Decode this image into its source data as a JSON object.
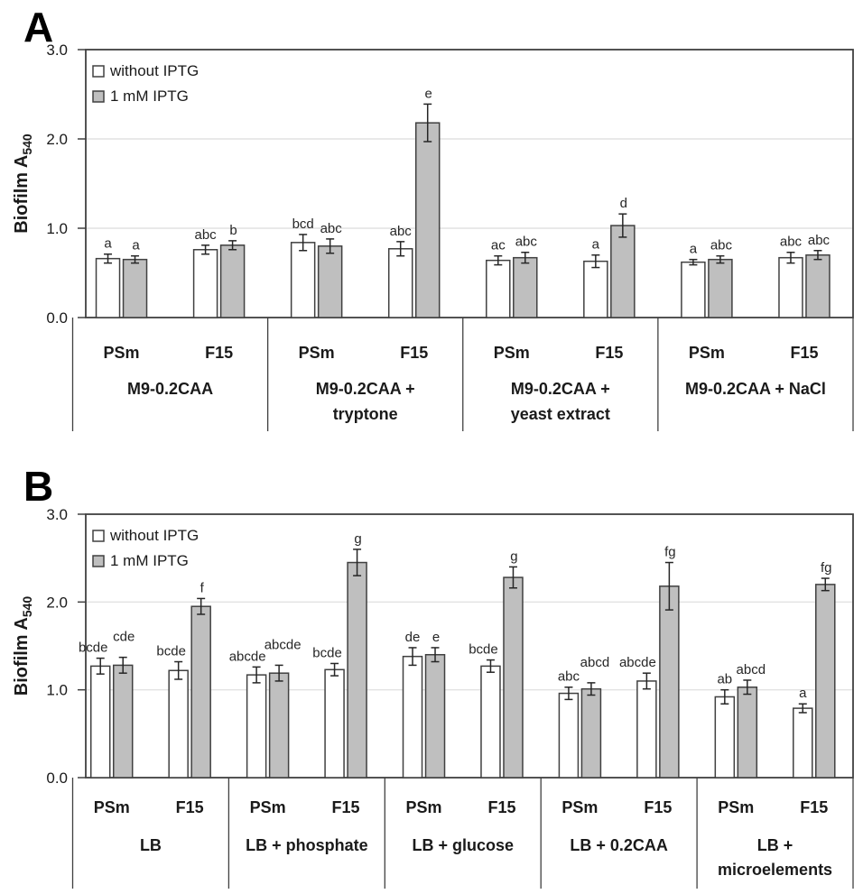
{
  "figure": {
    "background": "#FFFFFF",
    "panel_labels": [
      "A",
      "B"
    ]
  },
  "styles": {
    "frame_color": "#404040",
    "grid_color": "#E2E2E2",
    "text_color": "#1A1A1A",
    "error_bar_color": "#262626",
    "bar_stroke_color": "#404040"
  },
  "chart_data": [
    {
      "type": "bar",
      "panel_label": "A",
      "ylabel": "Biofilm A",
      "ylabel_subscript": "540",
      "ylim": [
        0.0,
        3.0
      ],
      "yticks": [
        0.0,
        1.0,
        2.0,
        3.0
      ],
      "gridlines_at": [
        1.0,
        2.0
      ],
      "legend": {
        "position": "top-left-inside",
        "items": [
          {
            "label": "without IPTG",
            "fill": "#FFFFFF"
          },
          {
            "label": "1 mM IPTG",
            "fill": "#BFBFBF"
          }
        ]
      },
      "strains": [
        "PSm",
        "F15"
      ],
      "groups": [
        {
          "label_lines": [
            "M9-0.2CAA"
          ],
          "subgroups": [
            {
              "label": "PSm",
              "bars": [
                {
                  "value": 0.66,
                  "error": 0.05,
                  "letter": "a"
                },
                {
                  "value": 0.65,
                  "error": 0.04,
                  "letter": "a"
                }
              ]
            },
            {
              "label": "F15",
              "bars": [
                {
                  "value": 0.76,
                  "error": 0.05,
                  "letter": "abc"
                },
                {
                  "value": 0.81,
                  "error": 0.05,
                  "letter": "b"
                }
              ]
            }
          ]
        },
        {
          "label_lines": [
            "M9-0.2CAA +",
            "tryptone"
          ],
          "subgroups": [
            {
              "label": "PSm",
              "bars": [
                {
                  "value": 0.84,
                  "error": 0.09,
                  "letter": "bcd"
                },
                {
                  "value": 0.8,
                  "error": 0.08,
                  "letter": "abc"
                }
              ]
            },
            {
              "label": "F15",
              "bars": [
                {
                  "value": 0.77,
                  "error": 0.08,
                  "letter": "abc"
                },
                {
                  "value": 2.18,
                  "error": 0.21,
                  "letter": "e"
                }
              ]
            }
          ]
        },
        {
          "label_lines": [
            "M9-0.2CAA +",
            "yeast extract"
          ],
          "subgroups": [
            {
              "label": "PSm",
              "bars": [
                {
                  "value": 0.64,
                  "error": 0.05,
                  "letter": "ac"
                },
                {
                  "value": 0.67,
                  "error": 0.06,
                  "letter": "abc"
                }
              ]
            },
            {
              "label": "F15",
              "bars": [
                {
                  "value": 0.63,
                  "error": 0.07,
                  "letter": "a"
                },
                {
                  "value": 1.03,
                  "error": 0.13,
                  "letter": "d"
                }
              ]
            }
          ]
        },
        {
          "label_lines": [
            "M9-0.2CAA + NaCl"
          ],
          "subgroups": [
            {
              "label": "PSm",
              "bars": [
                {
                  "value": 0.62,
                  "error": 0.03,
                  "letter": "a"
                },
                {
                  "value": 0.65,
                  "error": 0.04,
                  "letter": "abc"
                }
              ]
            },
            {
              "label": "F15",
              "bars": [
                {
                  "value": 0.67,
                  "error": 0.06,
                  "letter": "abc"
                },
                {
                  "value": 0.7,
                  "error": 0.05,
                  "letter": "abc"
                }
              ]
            }
          ]
        }
      ]
    },
    {
      "type": "bar",
      "panel_label": "B",
      "ylabel": "Biofilm A",
      "ylabel_subscript": "540",
      "ylim": [
        0.0,
        3.0
      ],
      "yticks": [
        0.0,
        1.0,
        2.0,
        3.0
      ],
      "gridlines_at": [
        1.0,
        2.0
      ],
      "legend": {
        "position": "top-left-inside",
        "items": [
          {
            "label": "without IPTG",
            "fill": "#FFFFFF"
          },
          {
            "label": "1 mM IPTG",
            "fill": "#BFBFBF"
          }
        ]
      },
      "strains": [
        "PSm",
        "F15"
      ],
      "groups": [
        {
          "label_lines": [
            "LB"
          ],
          "subgroups": [
            {
              "label": "PSm",
              "bars": [
                {
                  "value": 1.27,
                  "error": 0.09,
                  "letter": "bcde"
                },
                {
                  "value": 1.28,
                  "error": 0.09,
                  "letter": "cde"
                }
              ]
            },
            {
              "label": "F15",
              "bars": [
                {
                  "value": 1.22,
                  "error": 0.1,
                  "letter": "bcde"
                },
                {
                  "value": 1.95,
                  "error": 0.09,
                  "letter": "f"
                }
              ]
            }
          ]
        },
        {
          "label_lines": [
            "LB + phosphate"
          ],
          "subgroups": [
            {
              "label": "PSm",
              "bars": [
                {
                  "value": 1.17,
                  "error": 0.09,
                  "letter": "abcde"
                },
                {
                  "value": 1.19,
                  "error": 0.09,
                  "letter": "abcde"
                }
              ]
            },
            {
              "label": "F15",
              "bars": [
                {
                  "value": 1.23,
                  "error": 0.07,
                  "letter": "bcde"
                },
                {
                  "value": 2.45,
                  "error": 0.15,
                  "letter": "g"
                }
              ]
            }
          ]
        },
        {
          "label_lines": [
            "LB + glucose"
          ],
          "subgroups": [
            {
              "label": "PSm",
              "bars": [
                {
                  "value": 1.38,
                  "error": 0.1,
                  "letter": "de"
                },
                {
                  "value": 1.4,
                  "error": 0.08,
                  "letter": "e"
                }
              ]
            },
            {
              "label": "F15",
              "bars": [
                {
                  "value": 1.27,
                  "error": 0.07,
                  "letter": "bcde"
                },
                {
                  "value": 2.28,
                  "error": 0.12,
                  "letter": "g"
                }
              ]
            }
          ]
        },
        {
          "label_lines": [
            "LB + 0.2CAA"
          ],
          "subgroups": [
            {
              "label": "PSm",
              "bars": [
                {
                  "value": 0.96,
                  "error": 0.07,
                  "letter": "abc"
                },
                {
                  "value": 1.01,
                  "error": 0.07,
                  "letter": "abcd"
                }
              ]
            },
            {
              "label": "F15",
              "bars": [
                {
                  "value": 1.1,
                  "error": 0.09,
                  "letter": "abcde"
                },
                {
                  "value": 2.18,
                  "error": 0.27,
                  "letter": "fg"
                }
              ]
            }
          ]
        },
        {
          "label_lines": [
            "LB +",
            "microelements"
          ],
          "subgroups": [
            {
              "label": "PSm",
              "bars": [
                {
                  "value": 0.92,
                  "error": 0.08,
                  "letter": "ab"
                },
                {
                  "value": 1.03,
                  "error": 0.08,
                  "letter": "abcd"
                }
              ]
            },
            {
              "label": "F15",
              "bars": [
                {
                  "value": 0.79,
                  "error": 0.05,
                  "letter": "a"
                },
                {
                  "value": 2.2,
                  "error": 0.07,
                  "letter": "fg"
                }
              ]
            }
          ]
        }
      ]
    }
  ]
}
